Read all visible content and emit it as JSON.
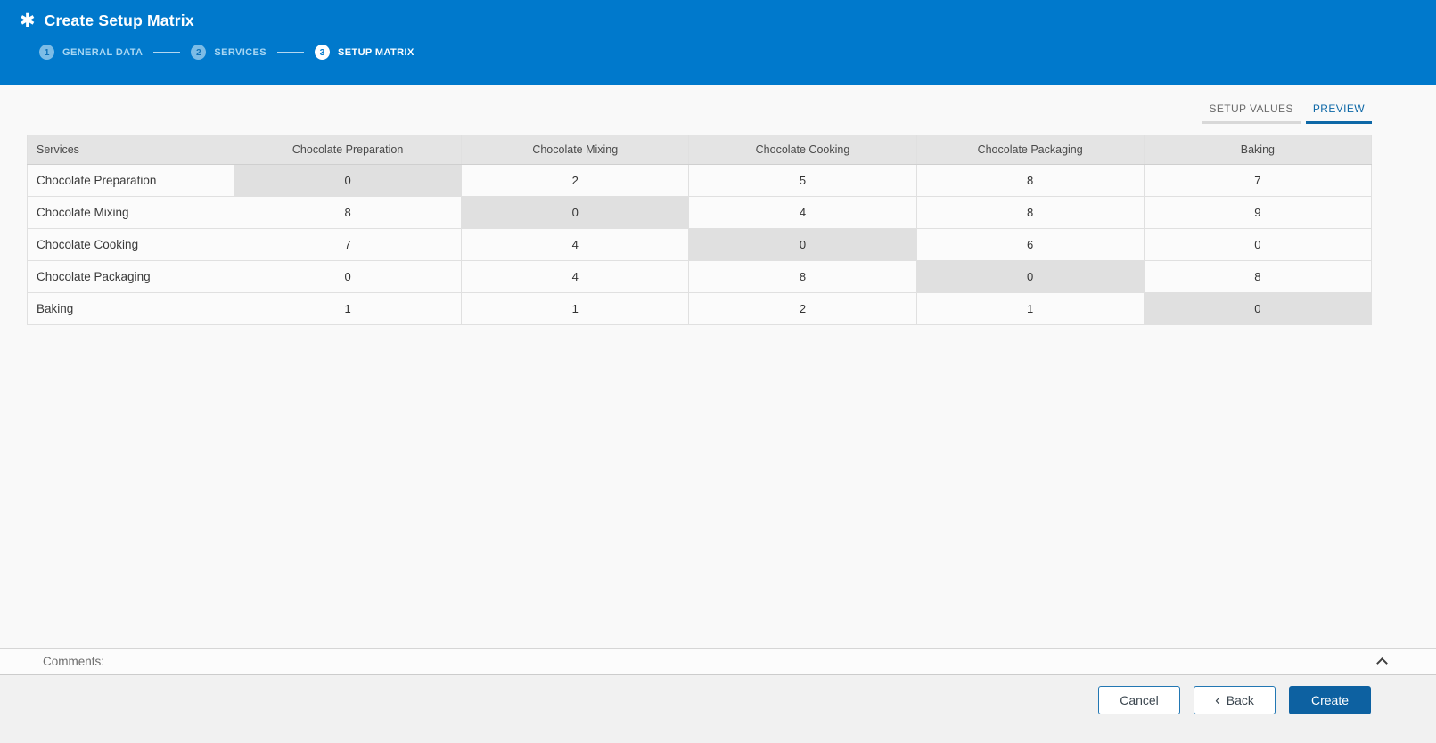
{
  "header": {
    "title": "Create Setup Matrix",
    "icon": "asterisk",
    "steps": [
      {
        "number": "1",
        "label": "GENERAL DATA",
        "state": "done"
      },
      {
        "number": "2",
        "label": "SERVICES",
        "state": "done"
      },
      {
        "number": "3",
        "label": "SETUP MATRIX",
        "state": "active"
      }
    ]
  },
  "tabs": [
    {
      "label": "SETUP VALUES",
      "active": false
    },
    {
      "label": "PREVIEW",
      "active": true
    }
  ],
  "matrix": {
    "corner_header": "Services",
    "column_headers": [
      "Chocolate Preparation",
      "Chocolate Mixing",
      "Chocolate Cooking",
      "Chocolate Packaging",
      "Baking"
    ],
    "rows": [
      {
        "label": "Chocolate Preparation",
        "values": [
          "0",
          "2",
          "5",
          "8",
          "7"
        ]
      },
      {
        "label": "Chocolate Mixing",
        "values": [
          "8",
          "0",
          "4",
          "8",
          "9"
        ]
      },
      {
        "label": "Chocolate Cooking",
        "values": [
          "7",
          "4",
          "0",
          "6",
          "0"
        ]
      },
      {
        "label": "Chocolate Packaging",
        "values": [
          "0",
          "4",
          "8",
          "0",
          "8"
        ]
      },
      {
        "label": "Baking",
        "values": [
          "1",
          "1",
          "2",
          "1",
          "0"
        ]
      }
    ]
  },
  "comments": {
    "label": "Comments:",
    "collapse_icon": "chevron-up"
  },
  "footer": {
    "cancel_label": "Cancel",
    "back_label": "Back",
    "back_icon": "chevron-left",
    "create_label": "Create"
  },
  "colors": {
    "banner_bg": "#0079cc",
    "active_tab": "#0d68a7",
    "create_button_bg": "#0d61a1",
    "header_row_bg": "#e4e4e4",
    "diagonal_cell_bg": "#e0e0e0"
  }
}
